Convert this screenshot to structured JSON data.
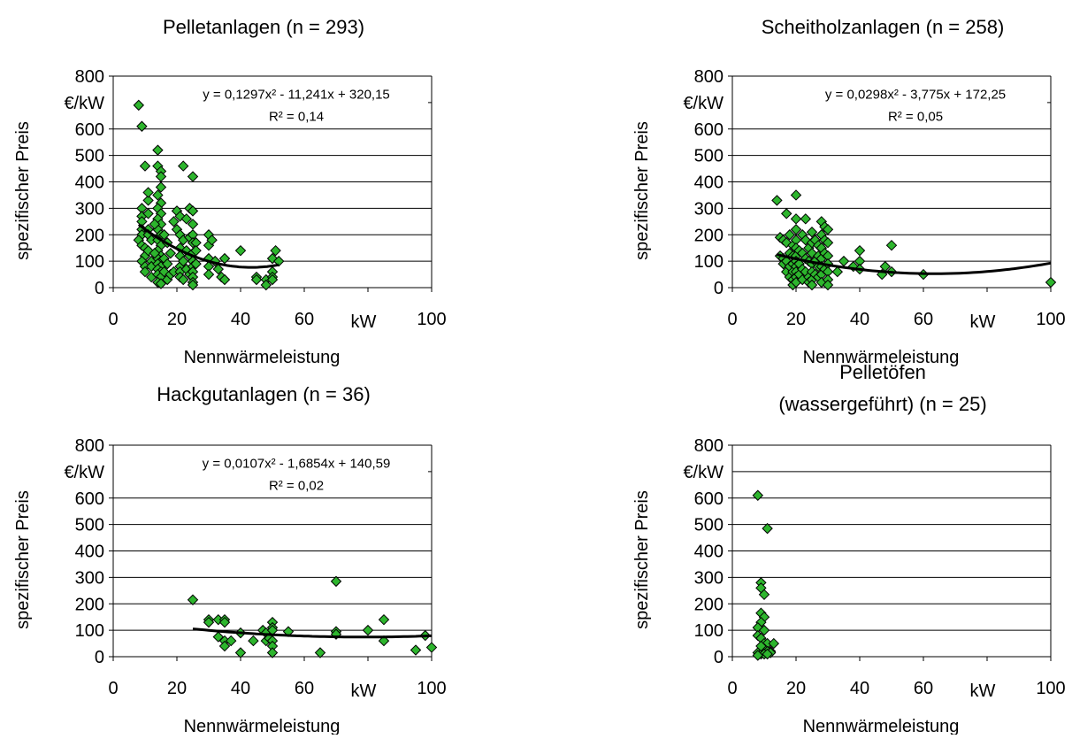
{
  "chart_data": [
    {
      "type": "scatter",
      "title": "Pelletanlagen (n = 293)",
      "title_lines": [
        "Pelletanlagen (n = 293)"
      ],
      "xlabel": "Nennwärmeleistung",
      "ylabel": "spezifischer Preis",
      "yunit": "€/kW",
      "xunit": "kW",
      "xlim": [
        0,
        100
      ],
      "ylim": [
        0,
        800
      ],
      "xticks": [
        0,
        20,
        40,
        60,
        100
      ],
      "yticks": [
        0,
        100,
        200,
        300,
        400,
        500,
        600,
        800
      ],
      "grid": true,
      "marker_color": "#2db52d",
      "equation": "y = 0,1297x² - 11,241x + 320,15",
      "r2": "R² = 0,14",
      "trend": {
        "coef": [
          0.1297,
          -11.241,
          320.15
        ],
        "xrange": [
          8,
          52
        ]
      },
      "points": [
        [
          8,
          690
        ],
        [
          9,
          610
        ],
        [
          10,
          460
        ],
        [
          9,
          300
        ],
        [
          9,
          270
        ],
        [
          9,
          250
        ],
        [
          9,
          220
        ],
        [
          9,
          200
        ],
        [
          8,
          180
        ],
        [
          9,
          160
        ],
        [
          10,
          150
        ],
        [
          10,
          120
        ],
        [
          9,
          100
        ],
        [
          10,
          80
        ],
        [
          10,
          60
        ],
        [
          11,
          330
        ],
        [
          11,
          360
        ],
        [
          11,
          280
        ],
        [
          11,
          220
        ],
        [
          11,
          200
        ],
        [
          11,
          140
        ],
        [
          12,
          180
        ],
        [
          12,
          100
        ],
        [
          12,
          80
        ],
        [
          12,
          40
        ],
        [
          14,
          520
        ],
        [
          14,
          460
        ],
        [
          15,
          440
        ],
        [
          15,
          420
        ],
        [
          15,
          380
        ],
        [
          14,
          350
        ],
        [
          15,
          320
        ],
        [
          14,
          300
        ],
        [
          15,
          280
        ],
        [
          14,
          260
        ],
        [
          15,
          240
        ],
        [
          14,
          220
        ],
        [
          15,
          200
        ],
        [
          14,
          180
        ],
        [
          15,
          160
        ],
        [
          14,
          140
        ],
        [
          15,
          120
        ],
        [
          14,
          110
        ],
        [
          15,
          100
        ],
        [
          14,
          90
        ],
        [
          15,
          80
        ],
        [
          14,
          70
        ],
        [
          15,
          60
        ],
        [
          14,
          50
        ],
        [
          15,
          40
        ],
        [
          14,
          20
        ],
        [
          15,
          15
        ],
        [
          13,
          240
        ],
        [
          13,
          130
        ],
        [
          16,
          200
        ],
        [
          16,
          110
        ],
        [
          16,
          60
        ],
        [
          17,
          170
        ],
        [
          17,
          90
        ],
        [
          17,
          30
        ],
        [
          18,
          130
        ],
        [
          18,
          50
        ],
        [
          19,
          250
        ],
        [
          19,
          60
        ],
        [
          20,
          290
        ],
        [
          20,
          220
        ],
        [
          21,
          270
        ],
        [
          21,
          200
        ],
        [
          21,
          150
        ],
        [
          21,
          120
        ],
        [
          21,
          80
        ],
        [
          21,
          60
        ],
        [
          21,
          40
        ],
        [
          22,
          460
        ],
        [
          22,
          180
        ],
        [
          22,
          100
        ],
        [
          22,
          30
        ],
        [
          23,
          260
        ],
        [
          23,
          140
        ],
        [
          23,
          70
        ],
        [
          24,
          300
        ],
        [
          24,
          190
        ],
        [
          24,
          120
        ],
        [
          24,
          50
        ],
        [
          25,
          420
        ],
        [
          25,
          290
        ],
        [
          25,
          240
        ],
        [
          25,
          200
        ],
        [
          25,
          170
        ],
        [
          25,
          130
        ],
        [
          25,
          100
        ],
        [
          25,
          80
        ],
        [
          25,
          60
        ],
        [
          25,
          40
        ],
        [
          25,
          20
        ],
        [
          25,
          10
        ],
        [
          26,
          170
        ],
        [
          26,
          140
        ],
        [
          26,
          90
        ],
        [
          30,
          200
        ],
        [
          30,
          160
        ],
        [
          30,
          110
        ],
        [
          30,
          80
        ],
        [
          30,
          50
        ],
        [
          31,
          180
        ],
        [
          32,
          100
        ],
        [
          33,
          70
        ],
        [
          34,
          40
        ],
        [
          35,
          110
        ],
        [
          35,
          30
        ],
        [
          40,
          140
        ],
        [
          45,
          40
        ],
        [
          45,
          30
        ],
        [
          48,
          30
        ],
        [
          48,
          10
        ],
        [
          50,
          110
        ],
        [
          50,
          60
        ],
        [
          50,
          40
        ],
        [
          50,
          30
        ],
        [
          51,
          140
        ],
        [
          52,
          100
        ]
      ]
    },
    {
      "type": "scatter",
      "title": "Scheitholzanlagen (n = 258)",
      "title_lines": [
        "Scheitholzanlagen (n = 258)"
      ],
      "xlabel": "Nennwärmeleistung",
      "ylabel": "spezifischer Preis",
      "yunit": "€/kW",
      "xunit": "kW",
      "xlim": [
        0,
        100
      ],
      "ylim": [
        0,
        800
      ],
      "xticks": [
        0,
        20,
        40,
        60,
        100
      ],
      "yticks": [
        0,
        100,
        200,
        300,
        400,
        500,
        600,
        800
      ],
      "grid": true,
      "marker_color": "#2db52d",
      "equation": "y = 0,0298x² - 3,775x + 172,25",
      "r2": "R² = 0,05",
      "trend": {
        "coef": [
          0.0298,
          -3.775,
          172.25
        ],
        "xrange": [
          14,
          100
        ]
      },
      "points": [
        [
          14,
          330
        ],
        [
          15,
          190
        ],
        [
          15,
          120
        ],
        [
          16,
          180
        ],
        [
          16,
          110
        ],
        [
          16,
          90
        ],
        [
          17,
          280
        ],
        [
          17,
          170
        ],
        [
          17,
          100
        ],
        [
          17,
          60
        ],
        [
          18,
          200
        ],
        [
          18,
          130
        ],
        [
          18,
          80
        ],
        [
          18,
          40
        ],
        [
          19,
          160
        ],
        [
          19,
          120
        ],
        [
          19,
          90
        ],
        [
          19,
          60
        ],
        [
          19,
          30
        ],
        [
          19,
          10
        ],
        [
          20,
          350
        ],
        [
          20,
          260
        ],
        [
          20,
          220
        ],
        [
          20,
          180
        ],
        [
          20,
          150
        ],
        [
          20,
          120
        ],
        [
          20,
          100
        ],
        [
          20,
          80
        ],
        [
          20,
          60
        ],
        [
          20,
          40
        ],
        [
          20,
          20
        ],
        [
          21,
          140
        ],
        [
          21,
          90
        ],
        [
          21,
          50
        ],
        [
          22,
          200
        ],
        [
          22,
          130
        ],
        [
          22,
          70
        ],
        [
          22,
          30
        ],
        [
          23,
          260
        ],
        [
          23,
          180
        ],
        [
          23,
          110
        ],
        [
          23,
          60
        ],
        [
          24,
          150
        ],
        [
          24,
          100
        ],
        [
          24,
          40
        ],
        [
          24,
          20
        ],
        [
          25,
          210
        ],
        [
          25,
          170
        ],
        [
          25,
          130
        ],
        [
          25,
          90
        ],
        [
          25,
          60
        ],
        [
          25,
          30
        ],
        [
          25,
          10
        ],
        [
          26,
          180
        ],
        [
          26,
          100
        ],
        [
          26,
          50
        ],
        [
          27,
          160
        ],
        [
          27,
          120
        ],
        [
          27,
          80
        ],
        [
          27,
          40
        ],
        [
          28,
          250
        ],
        [
          28,
          200
        ],
        [
          28,
          150
        ],
        [
          28,
          110
        ],
        [
          28,
          80
        ],
        [
          28,
          50
        ],
        [
          28,
          20
        ],
        [
          29,
          230
        ],
        [
          29,
          180
        ],
        [
          29,
          130
        ],
        [
          29,
          70
        ],
        [
          30,
          220
        ],
        [
          30,
          170
        ],
        [
          30,
          120
        ],
        [
          30,
          90
        ],
        [
          30,
          60
        ],
        [
          30,
          30
        ],
        [
          30,
          10
        ],
        [
          33,
          60
        ],
        [
          35,
          100
        ],
        [
          38,
          80
        ],
        [
          40,
          140
        ],
        [
          40,
          100
        ],
        [
          40,
          70
        ],
        [
          47,
          50
        ],
        [
          48,
          80
        ],
        [
          50,
          160
        ],
        [
          50,
          60
        ],
        [
          60,
          50
        ],
        [
          100,
          20
        ]
      ]
    },
    {
      "type": "scatter",
      "title": "Hackgutanlagen (n = 36)",
      "title_lines": [
        "Hackgutanlagen (n = 36)"
      ],
      "xlabel": "Nennwärmeleistung",
      "ylabel": "spezifischer Preis",
      "yunit": "€/kW",
      "xunit": "kW",
      "xlim": [
        0,
        100
      ],
      "ylim": [
        0,
        800
      ],
      "xticks": [
        0,
        20,
        40,
        60,
        100
      ],
      "yticks": [
        0,
        100,
        200,
        300,
        400,
        500,
        600,
        800
      ],
      "grid": true,
      "marker_color": "#2db52d",
      "equation": "y = 0,0107x² - 1,6854x + 140,59",
      "r2": "R² = 0,02",
      "trend": {
        "coef": [
          0.0107,
          -1.6854,
          140.59
        ],
        "xrange": [
          25,
          100
        ]
      },
      "points": [
        [
          25,
          215
        ],
        [
          30,
          140
        ],
        [
          30,
          130
        ],
        [
          33,
          140
        ],
        [
          33,
          75
        ],
        [
          35,
          140
        ],
        [
          35,
          130
        ],
        [
          35,
          60
        ],
        [
          35,
          40
        ],
        [
          37,
          60
        ],
        [
          40,
          90
        ],
        [
          40,
          15
        ],
        [
          44,
          60
        ],
        [
          47,
          100
        ],
        [
          48,
          90
        ],
        [
          48,
          60
        ],
        [
          49,
          70
        ],
        [
          50,
          130
        ],
        [
          50,
          110
        ],
        [
          50,
          100
        ],
        [
          50,
          60
        ],
        [
          50,
          40
        ],
        [
          50,
          15
        ],
        [
          55,
          95
        ],
        [
          65,
          15
        ],
        [
          70,
          285
        ],
        [
          70,
          95
        ],
        [
          70,
          85
        ],
        [
          80,
          100
        ],
        [
          85,
          140
        ],
        [
          85,
          60
        ],
        [
          95,
          25
        ],
        [
          98,
          80
        ],
        [
          100,
          35
        ]
      ]
    },
    {
      "type": "scatter",
      "title": "Pelletöfen (wassergeführt) (n = 25)",
      "title_lines": [
        "Pelletöfen",
        "(wassergeführt) (n = 25)"
      ],
      "xlabel": "Nennwärmeleistung",
      "ylabel": "spezifischer Preis",
      "yunit": "€/kW",
      "xunit": "kW",
      "xlim": [
        0,
        100
      ],
      "ylim": [
        0,
        800
      ],
      "xticks": [
        0,
        20,
        40,
        60,
        100
      ],
      "yticks": [
        0,
        100,
        200,
        300,
        400,
        500,
        600,
        800
      ],
      "grid": true,
      "marker_color": "#2db52d",
      "equation": "",
      "r2": "",
      "trend": null,
      "points": [
        [
          8,
          610
        ],
        [
          11,
          485
        ],
        [
          9,
          280
        ],
        [
          9,
          260
        ],
        [
          10,
          235
        ],
        [
          9,
          165
        ],
        [
          10,
          150
        ],
        [
          9,
          130
        ],
        [
          8,
          110
        ],
        [
          8,
          80
        ],
        [
          9,
          70
        ],
        [
          10,
          100
        ],
        [
          10,
          50
        ],
        [
          11,
          50
        ],
        [
          13,
          50
        ],
        [
          12,
          20
        ],
        [
          8,
          15
        ],
        [
          9,
          10
        ],
        [
          10,
          30
        ],
        [
          11,
          20
        ],
        [
          12,
          15
        ],
        [
          9,
          40
        ],
        [
          10,
          10
        ],
        [
          11,
          10
        ],
        [
          8,
          5
        ]
      ]
    }
  ]
}
